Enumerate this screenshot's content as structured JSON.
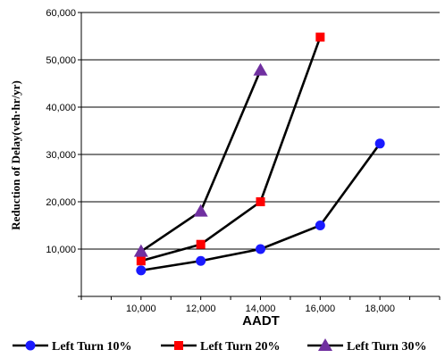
{
  "chart_data": {
    "type": "line",
    "xlabel": "AADT",
    "ylabel": "Reduction of Delay(veh·hr/yr)",
    "xlim": [
      8000,
      20000
    ],
    "ylim": [
      0,
      60000
    ],
    "x_ticks": [
      "10,000",
      "12,000",
      "14,000",
      "16,000",
      "18,000"
    ],
    "y_ticks": [
      "10,000",
      "20,000",
      "30,000",
      "40,000",
      "50,000",
      "60,000"
    ],
    "grid": "horizontal",
    "legend_position": "bottom",
    "series": [
      {
        "name": "Left Turn 10%",
        "marker": "circle",
        "color": "#1a1aff",
        "points": [
          [
            10000,
            5500
          ],
          [
            12000,
            7500
          ],
          [
            14000,
            10000
          ],
          [
            16000,
            15000
          ],
          [
            18000,
            32300
          ]
        ]
      },
      {
        "name": "Left Turn 20%",
        "marker": "square",
        "color": "#ff0000",
        "points": [
          [
            10000,
            7500
          ],
          [
            12000,
            11000
          ],
          [
            14000,
            20000
          ],
          [
            16000,
            54800
          ]
        ]
      },
      {
        "name": "Left Turn 30%",
        "marker": "triangle",
        "color": "#7030a0",
        "points": [
          [
            10000,
            9500
          ],
          [
            12000,
            18000
          ],
          [
            14000,
            47800
          ]
        ]
      }
    ]
  }
}
